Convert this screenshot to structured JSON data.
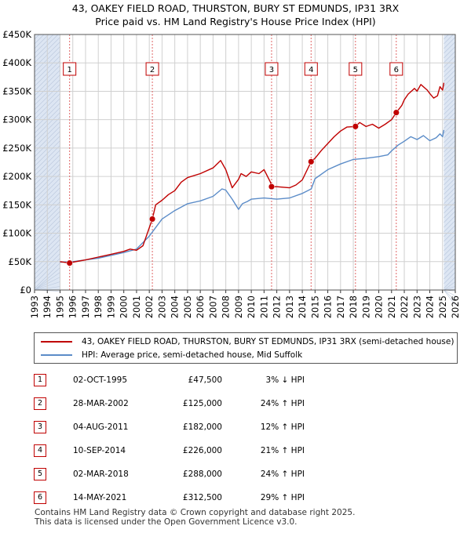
{
  "title_line1": "43, OAKEY FIELD ROAD, THURSTON, BURY ST EDMUNDS, IP31 3RX",
  "title_line2": "Price paid vs. HM Land Registry's House Price Index (HPI)",
  "chart_data": {
    "type": "line",
    "xlim": [
      1993,
      2026
    ],
    "ylim": [
      0,
      450000
    ],
    "y_ticks": [
      0,
      50000,
      100000,
      150000,
      200000,
      250000,
      300000,
      350000,
      400000,
      450000
    ],
    "y_tick_labels": [
      "£0",
      "£50K",
      "£100K",
      "£150K",
      "£200K",
      "£250K",
      "£300K",
      "£350K",
      "£400K",
      "£450K"
    ],
    "x_ticks": [
      1993,
      1994,
      1995,
      1996,
      1997,
      1998,
      1999,
      2000,
      2001,
      2002,
      2003,
      2004,
      2005,
      2006,
      2007,
      2008,
      2009,
      2010,
      2011,
      2012,
      2013,
      2014,
      2015,
      2016,
      2017,
      2018,
      2019,
      2020,
      2021,
      2022,
      2023,
      2024,
      2025,
      2026
    ],
    "x_tick_labels": [
      "1993",
      "1994",
      "1995",
      "1996",
      "1997",
      "1998",
      "1999",
      "2000",
      "2001",
      "2002",
      "2003",
      "2004",
      "2005",
      "2006",
      "2007",
      "2008",
      "2009",
      "2010",
      "2011",
      "2012",
      "2013",
      "2014",
      "2015",
      "2016",
      "2017",
      "2018",
      "2019",
      "2020",
      "2021",
      "2022",
      "2023",
      "2024",
      "2025",
      "2026"
    ],
    "data_range": [
      1995.0,
      2025.1
    ],
    "colors": {
      "property": "#c00000",
      "hpi": "#5b8cc8",
      "shade": "#dde6f3",
      "grid": "#d0d0d0",
      "marker": "#c00000"
    },
    "series": [
      {
        "name": "43, OAKEY FIELD ROAD, THURSTON, BURY ST EDMUNDS, IP31 3RX (semi-detached house)",
        "x": [
          1995.0,
          1995.75,
          1996,
          1997,
          1998,
          1999,
          2000,
          2000.5,
          2001,
          2001.5,
          2002.24,
          2002.5,
          2003,
          2003.5,
          2004,
          2004.5,
          2005,
          2006,
          2007,
          2007.6,
          2008,
          2008.5,
          2009,
          2009.2,
          2009.6,
          2010,
          2010.6,
          2011,
          2011.5,
          2011.59,
          2012,
          2013,
          2013.5,
          2014,
          2014.69,
          2015,
          2015.5,
          2016,
          2016.5,
          2017,
          2017.5,
          2018.17,
          2018.5,
          2019,
          2019.5,
          2020,
          2020.5,
          2021,
          2021.37,
          2021.8,
          2022,
          2022.3,
          2022.8,
          2023,
          2023.3,
          2023.8,
          2024,
          2024.3,
          2024.6,
          2024.8,
          2025.0,
          2025.1
        ],
        "y": [
          50000,
          47500,
          49000,
          53000,
          58000,
          63000,
          68000,
          72000,
          70000,
          78000,
          125000,
          150000,
          158000,
          168000,
          175000,
          190000,
          198000,
          205000,
          215000,
          228000,
          212000,
          180000,
          195000,
          205000,
          200000,
          208000,
          205000,
          212000,
          190000,
          182000,
          182000,
          180000,
          185000,
          194000,
          226000,
          232000,
          246000,
          258000,
          270000,
          280000,
          287000,
          288000,
          295000,
          288000,
          292000,
          285000,
          292000,
          300000,
          312500,
          325000,
          335000,
          345000,
          355000,
          350000,
          362000,
          352000,
          346000,
          338000,
          342000,
          358000,
          352000,
          365000
        ]
      },
      {
        "name": "HPI: Average price, semi-detached house, Mid Suffolk",
        "x": [
          1995.0,
          1996,
          1997,
          1998,
          1999,
          2000,
          2001,
          2002,
          2002.5,
          2003,
          2004,
          2005,
          2006,
          2007,
          2007.7,
          2008,
          2008.5,
          2009,
          2009.3,
          2009.7,
          2010,
          2011,
          2012,
          2013,
          2014,
          2014.7,
          2015,
          2016,
          2017,
          2018,
          2019,
          2020,
          2020.7,
          2021,
          2021.5,
          2022,
          2022.5,
          2023,
          2023.5,
          2024,
          2024.5,
          2024.8,
          2025.0,
          2025.1
        ],
        "y": [
          49000,
          50000,
          53000,
          56000,
          61000,
          66000,
          72000,
          95000,
          110000,
          125000,
          140000,
          152000,
          157000,
          165000,
          178000,
          176000,
          160000,
          142000,
          152000,
          156000,
          160000,
          162000,
          160000,
          162000,
          170000,
          178000,
          196000,
          212000,
          222000,
          230000,
          232000,
          235000,
          238000,
          245000,
          255000,
          262000,
          270000,
          265000,
          272000,
          263000,
          268000,
          275000,
          270000,
          282000
        ]
      }
    ],
    "sale_markers": [
      {
        "n": "1",
        "x": 1995.75,
        "y": 47500
      },
      {
        "n": "2",
        "x": 2002.24,
        "y": 125000
      },
      {
        "n": "3",
        "x": 2011.59,
        "y": 182000
      },
      {
        "n": "4",
        "x": 2014.69,
        "y": 226000
      },
      {
        "n": "5",
        "x": 2018.17,
        "y": 288000
      },
      {
        "n": "6",
        "x": 2021.37,
        "y": 312500
      }
    ]
  },
  "legend": {
    "property": "43, OAKEY FIELD ROAD, THURSTON, BURY ST EDMUNDS, IP31 3RX (semi-detached house)",
    "hpi": "HPI: Average price, semi-detached house, Mid Suffolk"
  },
  "sales": [
    {
      "num": "1",
      "date": "02-OCT-1995",
      "price": "£47,500",
      "hpi": "3% ↓ HPI"
    },
    {
      "num": "2",
      "date": "28-MAR-2002",
      "price": "£125,000",
      "hpi": "24% ↑ HPI"
    },
    {
      "num": "3",
      "date": "04-AUG-2011",
      "price": "£182,000",
      "hpi": "12% ↑ HPI"
    },
    {
      "num": "4",
      "date": "10-SEP-2014",
      "price": "£226,000",
      "hpi": "21% ↑ HPI"
    },
    {
      "num": "5",
      "date": "02-MAR-2018",
      "price": "£288,000",
      "hpi": "24% ↑ HPI"
    },
    {
      "num": "6",
      "date": "14-MAY-2021",
      "price": "£312,500",
      "hpi": "29% ↑ HPI"
    }
  ],
  "footer": {
    "line1": "Contains HM Land Registry data © Crown copyright and database right 2025.",
    "line2": "This data is licensed under the Open Government Licence v3.0."
  }
}
